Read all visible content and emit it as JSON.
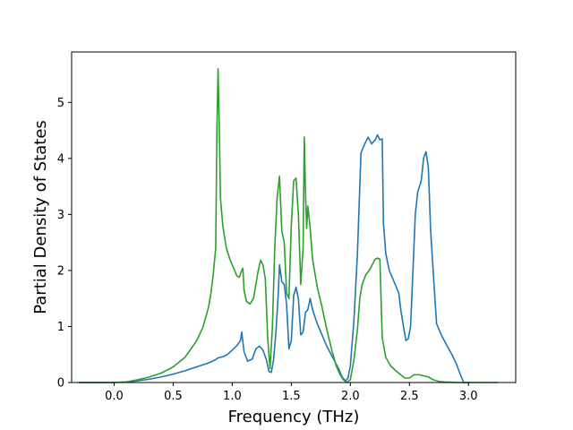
{
  "chart_data": {
    "type": "line",
    "title": "",
    "xlabel": "Frequency (THz)",
    "ylabel": "Partial Density of States",
    "xlim": [
      -0.36,
      3.4
    ],
    "ylim": [
      0,
      5.9
    ],
    "xticks": [
      "0.0",
      "0.5",
      "1.0",
      "1.5",
      "2.0",
      "2.5",
      "3.0"
    ],
    "yticks": [
      "0",
      "1",
      "2",
      "3",
      "4",
      "5"
    ],
    "grid": false,
    "legend": "none",
    "series": [
      {
        "color": "#1f77b4",
        "points": [
          [
            -0.3,
            0.0
          ],
          [
            0.0,
            0.0
          ],
          [
            0.1,
            0.01
          ],
          [
            0.2,
            0.03
          ],
          [
            0.3,
            0.06
          ],
          [
            0.4,
            0.1
          ],
          [
            0.5,
            0.15
          ],
          [
            0.6,
            0.21
          ],
          [
            0.7,
            0.28
          ],
          [
            0.8,
            0.35
          ],
          [
            0.86,
            0.41
          ],
          [
            0.88,
            0.44
          ],
          [
            0.92,
            0.46
          ],
          [
            0.96,
            0.5
          ],
          [
            1.0,
            0.58
          ],
          [
            1.04,
            0.66
          ],
          [
            1.07,
            0.75
          ],
          [
            1.08,
            0.9
          ],
          [
            1.1,
            0.55
          ],
          [
            1.13,
            0.38
          ],
          [
            1.17,
            0.42
          ],
          [
            1.2,
            0.6
          ],
          [
            1.23,
            0.65
          ],
          [
            1.26,
            0.58
          ],
          [
            1.29,
            0.4
          ],
          [
            1.31,
            0.2
          ],
          [
            1.33,
            0.18
          ],
          [
            1.35,
            0.4
          ],
          [
            1.37,
            0.9
          ],
          [
            1.39,
            1.6
          ],
          [
            1.4,
            2.1
          ],
          [
            1.42,
            1.8
          ],
          [
            1.44,
            1.75
          ],
          [
            1.46,
            1.4
          ],
          [
            1.48,
            0.6
          ],
          [
            1.5,
            0.75
          ],
          [
            1.52,
            1.55
          ],
          [
            1.54,
            1.7
          ],
          [
            1.56,
            1.5
          ],
          [
            1.58,
            0.85
          ],
          [
            1.6,
            0.9
          ],
          [
            1.62,
            1.25
          ],
          [
            1.64,
            1.3
          ],
          [
            1.66,
            1.5
          ],
          [
            1.68,
            1.3
          ],
          [
            1.72,
            1.05
          ],
          [
            1.76,
            0.85
          ],
          [
            1.8,
            0.65
          ],
          [
            1.85,
            0.45
          ],
          [
            1.9,
            0.25
          ],
          [
            1.93,
            0.1
          ],
          [
            1.96,
            0.03
          ],
          [
            1.98,
            0.08
          ],
          [
            2.0,
            0.3
          ],
          [
            2.03,
            1.1
          ],
          [
            2.06,
            2.3
          ],
          [
            2.09,
            4.1
          ],
          [
            2.12,
            4.25
          ],
          [
            2.15,
            4.38
          ],
          [
            2.18,
            4.26
          ],
          [
            2.21,
            4.33
          ],
          [
            2.23,
            4.42
          ],
          [
            2.25,
            4.33
          ],
          [
            2.27,
            4.35
          ],
          [
            2.28,
            2.85
          ],
          [
            2.3,
            2.3
          ],
          [
            2.33,
            2.0
          ],
          [
            2.37,
            1.8
          ],
          [
            2.41,
            1.6
          ],
          [
            2.43,
            1.25
          ],
          [
            2.45,
            1.0
          ],
          [
            2.47,
            0.75
          ],
          [
            2.49,
            0.78
          ],
          [
            2.51,
            1.0
          ],
          [
            2.53,
            2.0
          ],
          [
            2.55,
            3.0
          ],
          [
            2.57,
            3.4
          ],
          [
            2.6,
            3.6
          ],
          [
            2.62,
            4.0
          ],
          [
            2.64,
            4.12
          ],
          [
            2.66,
            3.85
          ],
          [
            2.68,
            2.7
          ],
          [
            2.71,
            1.7
          ],
          [
            2.73,
            1.05
          ],
          [
            2.77,
            0.85
          ],
          [
            2.82,
            0.65
          ],
          [
            2.86,
            0.5
          ],
          [
            2.9,
            0.32
          ],
          [
            2.93,
            0.15
          ],
          [
            2.96,
            0.0
          ],
          [
            3.0,
            0.0
          ]
        ]
      },
      {
        "color": "#2ca02c",
        "points": [
          [
            -0.3,
            0.0
          ],
          [
            0.0,
            0.0
          ],
          [
            0.1,
            0.01
          ],
          [
            0.2,
            0.05
          ],
          [
            0.3,
            0.1
          ],
          [
            0.4,
            0.17
          ],
          [
            0.5,
            0.28
          ],
          [
            0.6,
            0.45
          ],
          [
            0.7,
            0.75
          ],
          [
            0.75,
            0.98
          ],
          [
            0.78,
            1.2
          ],
          [
            0.8,
            1.35
          ],
          [
            0.82,
            1.6
          ],
          [
            0.84,
            1.95
          ],
          [
            0.86,
            2.4
          ],
          [
            0.87,
            4.5
          ],
          [
            0.88,
            5.6
          ],
          [
            0.89,
            4.6
          ],
          [
            0.9,
            3.3
          ],
          [
            0.92,
            2.8
          ],
          [
            0.95,
            2.4
          ],
          [
            0.98,
            2.2
          ],
          [
            1.01,
            2.05
          ],
          [
            1.04,
            1.9
          ],
          [
            1.06,
            1.88
          ],
          [
            1.08,
            2.0
          ],
          [
            1.09,
            2.04
          ],
          [
            1.1,
            1.65
          ],
          [
            1.12,
            1.45
          ],
          [
            1.15,
            1.4
          ],
          [
            1.18,
            1.5
          ],
          [
            1.2,
            1.75
          ],
          [
            1.22,
            2.0
          ],
          [
            1.24,
            2.18
          ],
          [
            1.26,
            2.1
          ],
          [
            1.28,
            1.85
          ],
          [
            1.3,
            0.8
          ],
          [
            1.32,
            0.25
          ],
          [
            1.34,
            1.0
          ],
          [
            1.36,
            2.4
          ],
          [
            1.38,
            3.3
          ],
          [
            1.4,
            3.68
          ],
          [
            1.42,
            2.7
          ],
          [
            1.44,
            2.5
          ],
          [
            1.46,
            1.6
          ],
          [
            1.48,
            1.5
          ],
          [
            1.5,
            2.8
          ],
          [
            1.52,
            3.6
          ],
          [
            1.54,
            3.65
          ],
          [
            1.56,
            3.0
          ],
          [
            1.58,
            1.75
          ],
          [
            1.6,
            2.4
          ],
          [
            1.61,
            4.38
          ],
          [
            1.62,
            3.4
          ],
          [
            1.63,
            2.75
          ],
          [
            1.64,
            3.15
          ],
          [
            1.66,
            2.75
          ],
          [
            1.68,
            2.2
          ],
          [
            1.72,
            1.7
          ],
          [
            1.76,
            1.35
          ],
          [
            1.8,
            0.95
          ],
          [
            1.84,
            0.6
          ],
          [
            1.88,
            0.3
          ],
          [
            1.91,
            0.15
          ],
          [
            1.94,
            0.05
          ],
          [
            1.97,
            0.0
          ],
          [
            2.0,
            0.05
          ],
          [
            2.03,
            0.4
          ],
          [
            2.06,
            0.95
          ],
          [
            2.08,
            1.5
          ],
          [
            2.1,
            1.75
          ],
          [
            2.13,
            1.92
          ],
          [
            2.16,
            2.0
          ],
          [
            2.19,
            2.12
          ],
          [
            2.21,
            2.2
          ],
          [
            2.23,
            2.22
          ],
          [
            2.25,
            2.2
          ],
          [
            2.26,
            1.5
          ],
          [
            2.27,
            0.8
          ],
          [
            2.3,
            0.45
          ],
          [
            2.34,
            0.3
          ],
          [
            2.38,
            0.22
          ],
          [
            2.42,
            0.15
          ],
          [
            2.46,
            0.08
          ],
          [
            2.5,
            0.08
          ],
          [
            2.54,
            0.14
          ],
          [
            2.58,
            0.14
          ],
          [
            2.62,
            0.12
          ],
          [
            2.66,
            0.1
          ],
          [
            2.7,
            0.05
          ],
          [
            2.75,
            0.02
          ],
          [
            2.8,
            0.01
          ],
          [
            2.9,
            0.0
          ],
          [
            3.0,
            0.0
          ],
          [
            3.1,
            0.0
          ],
          [
            3.25,
            0.0
          ]
        ]
      }
    ]
  }
}
